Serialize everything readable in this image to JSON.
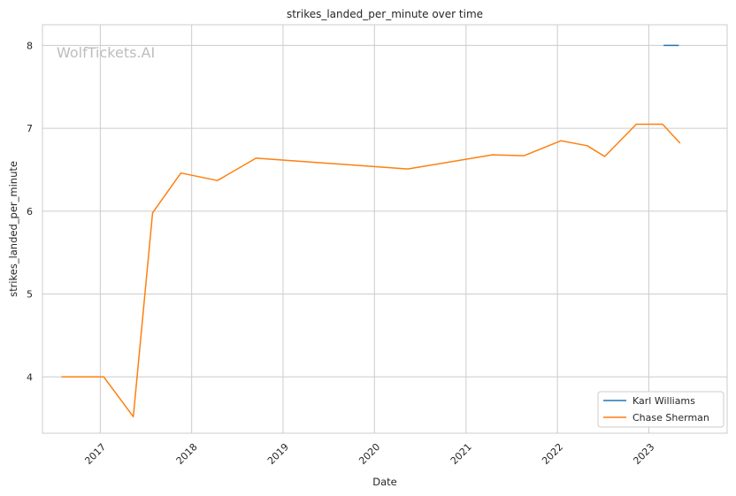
{
  "chart_data": {
    "type": "line",
    "title": "strikes_landed_per_minute over time",
    "xlabel": "Date",
    "ylabel": "strikes_landed_per_minute",
    "watermark": "WolfTickets.AI",
    "x_ticks": [
      "2017",
      "2018",
      "2019",
      "2020",
      "2021",
      "2022",
      "2023"
    ],
    "y_ticks": [
      4,
      5,
      6,
      7,
      8
    ],
    "xlim": [
      "2016-05-15",
      "2023-11-10"
    ],
    "ylim": [
      3.32,
      8.25
    ],
    "grid": true,
    "legend_position": "bottom-right",
    "series": [
      {
        "name": "Karl Williams",
        "color": "#1f77b4",
        "points": [
          {
            "x": "2023-03-01",
            "y": 8.0
          },
          {
            "x": "2023-05-01",
            "y": 8.0
          }
        ]
      },
      {
        "name": "Chase Sherman",
        "color": "#ff7f0e",
        "points": [
          {
            "x": "2016-07-30",
            "y": 4.0
          },
          {
            "x": "2017-01-15",
            "y": 4.0
          },
          {
            "x": "2017-05-13",
            "y": 3.52
          },
          {
            "x": "2017-07-29",
            "y": 5.98
          },
          {
            "x": "2017-11-19",
            "y": 6.46
          },
          {
            "x": "2018-04-14",
            "y": 6.37
          },
          {
            "x": "2018-09-15",
            "y": 6.64
          },
          {
            "x": "2020-05-13",
            "y": 6.51
          },
          {
            "x": "2021-04-17",
            "y": 6.68
          },
          {
            "x": "2021-08-21",
            "y": 6.67
          },
          {
            "x": "2022-01-15",
            "y": 6.85
          },
          {
            "x": "2022-04-30",
            "y": 6.79
          },
          {
            "x": "2022-07-09",
            "y": 6.66
          },
          {
            "x": "2022-11-12",
            "y": 7.05
          },
          {
            "x": "2023-02-25",
            "y": 7.05
          },
          {
            "x": "2023-05-06",
            "y": 6.82
          }
        ]
      }
    ]
  }
}
